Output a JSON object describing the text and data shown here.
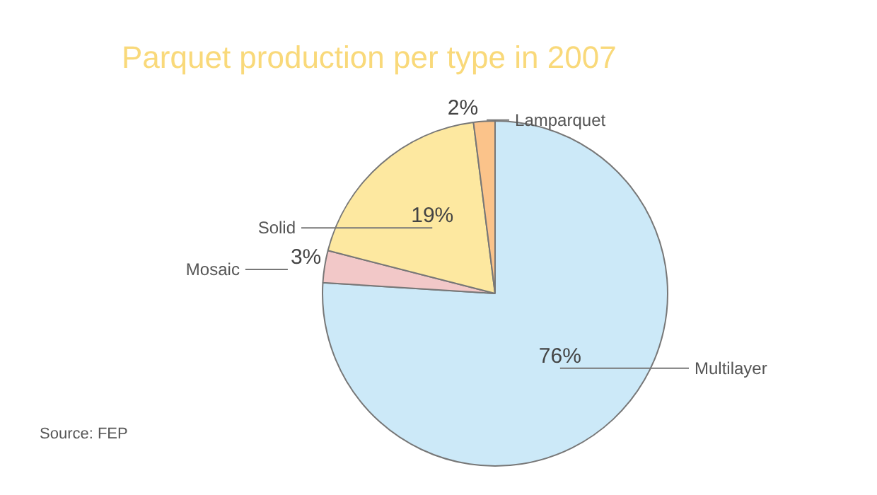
{
  "chart_data": {
    "type": "pie",
    "title": "Parquet production per type in 2007",
    "categories": [
      "Multilayer",
      "Mosaic",
      "Solid",
      "Lamparquet"
    ],
    "values": [
      76,
      3,
      19,
      2
    ],
    "value_labels": [
      "76%",
      "3%",
      "19%",
      "2%"
    ],
    "colors": [
      "#cce9f8",
      "#f2c8c8",
      "#fde8a0",
      "#fbc38a"
    ],
    "annotations": [
      "Source: FEP"
    ]
  }
}
